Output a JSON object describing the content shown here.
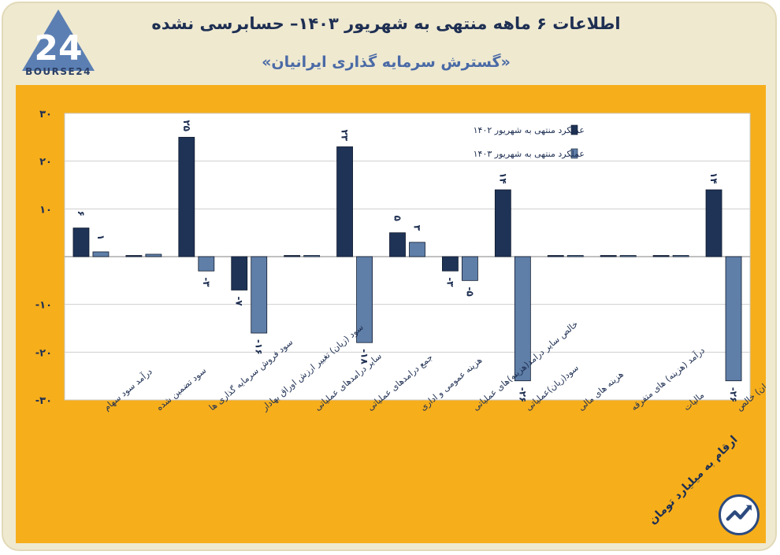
{
  "header": {
    "title": "اطلاعات ۶ ماهه منتهی به شهریور ۱۴۰۳– حسابرسی نشده",
    "subtitle": "«گسترش سرمایه گذاری ایرانیان»",
    "logo_text": "BOURSE24"
  },
  "footer": {
    "unit_note": "ارقام به میلیارد تومان"
  },
  "colors": {
    "series_1402": "#1e3356",
    "series_1403": "#5f7fa8",
    "panel": "#f6ae1b",
    "plot": "#ffffff"
  },
  "chart_data": {
    "type": "bar",
    "title": "",
    "xlabel": "",
    "ylabel": "",
    "ylim": [
      -30,
      30
    ],
    "yticks": [
      30,
      20,
      10,
      -10,
      -20,
      -30
    ],
    "ytick_labels": [
      "۳۰",
      "۲۰",
      "۱۰",
      "-۱۰",
      "-۲۰",
      "-۳۰"
    ],
    "grid": true,
    "legend_position": "top-right",
    "categories": [
      "درآمد سود سهام",
      "سود تضمین شده",
      "سود فروش سرمایه گذاری ها",
      "سود (زیان) تغییر ارزش اوراق بهادار",
      "سایر درامدهای عملیاتی",
      "جمع درامدهای عملیاتی",
      "هزینه عمومی و اداری",
      "خالص سایر درامد(هزینه)های عملیاتی",
      "سود(زیان)عملیاتی",
      "هزینه های مالی",
      "درآمد (هزینه) های متفرقه",
      "مالیات",
      "سود(زیان) خالص"
    ],
    "series": [
      {
        "name": "عملکرد منتهی به شهریور ۱۴۰۲",
        "values": [
          6,
          0,
          25,
          -7,
          0,
          23,
          5,
          -3,
          14,
          0,
          0,
          0,
          14
        ],
        "labels": [
          "۶",
          "",
          "۲۵",
          "-۷",
          "",
          "۲۳",
          "۵",
          "-۳",
          "۱۴",
          "",
          "",
          "",
          "۱۴"
        ]
      },
      {
        "name": "عملکرد منتهی به شهریور ۱۴۰۳",
        "values": [
          1,
          0.5,
          -3,
          -16,
          0,
          -18,
          3,
          -5,
          -26,
          0,
          0,
          0,
          -26
        ],
        "labels": [
          "۱",
          "",
          "-۳",
          "-۱۶",
          "",
          "-۱۸",
          "۳",
          "-۵",
          "-۲۶",
          "",
          "",
          "",
          "-۲۶"
        ]
      }
    ]
  }
}
